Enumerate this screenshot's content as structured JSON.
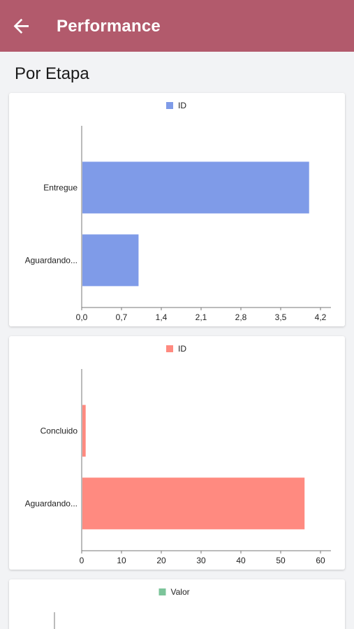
{
  "header": {
    "title": "Performance",
    "back_icon": "arrow-back-icon"
  },
  "section": {
    "title": "Por Etapa"
  },
  "colors": {
    "appbar": "#b25a6c",
    "series_blue": "#7f9be8",
    "series_red": "#ff8a80",
    "series_green": "#7cc49a"
  },
  "chart_data": [
    {
      "type": "bar",
      "orientation": "horizontal",
      "categories": [
        "Entregue",
        "Aguardando..."
      ],
      "series": [
        {
          "name": "ID",
          "values": [
            4,
            1
          ],
          "color": "#7f9be8"
        }
      ],
      "xlim": [
        0,
        4.2
      ],
      "ticks": [
        "0,0",
        "0,7",
        "1,4",
        "2,1",
        "2,8",
        "3,5",
        "4,2"
      ],
      "legend": "top-center"
    },
    {
      "type": "bar",
      "orientation": "horizontal",
      "categories": [
        "Concluido",
        "Aguardando..."
      ],
      "series": [
        {
          "name": "ID",
          "values": [
            1,
            56
          ],
          "color": "#ff8a80"
        }
      ],
      "xlim": [
        0,
        60
      ],
      "ticks": [
        "0",
        "10",
        "20",
        "30",
        "40",
        "50",
        "60"
      ],
      "legend": "top-center"
    },
    {
      "type": "bar",
      "categories": [],
      "series": [
        {
          "name": "Valor",
          "values": [],
          "color": "#7cc49a"
        }
      ],
      "legend": "top-center"
    }
  ]
}
